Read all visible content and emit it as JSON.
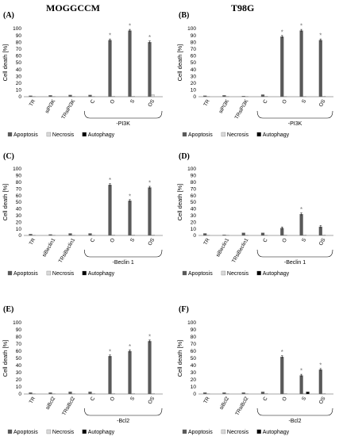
{
  "figure": {
    "column_titles": [
      "MOGGCCM",
      "T98G"
    ]
  },
  "chart_data": [
    {
      "type": "bar",
      "panel_label": "(A)",
      "ylabel": "Cell death [%]",
      "ylim": [
        0,
        100
      ],
      "yticks": [
        0,
        10,
        20,
        30,
        40,
        50,
        60,
        70,
        80,
        90,
        100
      ],
      "categories": [
        "TR",
        "siPI3K",
        "TRsiPI3K",
        "C",
        "O",
        "S",
        "OS"
      ],
      "bracket_label": "-PI3K",
      "significant": [
        false,
        false,
        false,
        false,
        true,
        true,
        true
      ],
      "significance_mark": "*",
      "legend": {
        "position": "bottom",
        "entries": [
          "Apoptosis",
          "Necrosis",
          "Autophagy"
        ]
      },
      "series": [
        {
          "name": "Apoptosis",
          "color": "#595959",
          "values": [
            1.5,
            2,
            2.5,
            2.5,
            83,
            97,
            80
          ]
        },
        {
          "name": "Necrosis",
          "color": "#d9d9d9",
          "values": [
            0.5,
            0.5,
            0.5,
            0.5,
            1,
            1,
            3
          ]
        },
        {
          "name": "Autophagy",
          "color": "#000000",
          "values": [
            0,
            0,
            0,
            0,
            0,
            0,
            0
          ]
        }
      ]
    },
    {
      "type": "bar",
      "panel_label": "(B)",
      "ylabel": "Cell death [%]",
      "ylim": [
        0,
        100
      ],
      "yticks": [
        0,
        10,
        20,
        30,
        40,
        50,
        60,
        70,
        80,
        90,
        100
      ],
      "categories": [
        "TR",
        "siPI3K",
        "TRsiPI3K",
        "C",
        "O",
        "S",
        "OS"
      ],
      "bracket_label": "-PI3K",
      "significant": [
        false,
        false,
        false,
        false,
        true,
        true,
        true
      ],
      "significance_mark": "*",
      "legend": {
        "position": "bottom",
        "entries": [
          "Apoptosis",
          "Necrosis",
          "Autophagy"
        ]
      },
      "series": [
        {
          "name": "Apoptosis",
          "color": "#595959",
          "values": [
            1.5,
            2,
            1,
            3,
            88,
            97,
            83
          ]
        },
        {
          "name": "Necrosis",
          "color": "#d9d9d9",
          "values": [
            0.5,
            0.5,
            0.5,
            1,
            0.5,
            0.5,
            1
          ]
        },
        {
          "name": "Autophagy",
          "color": "#000000",
          "values": [
            0,
            0,
            0,
            0,
            0,
            0,
            0
          ]
        }
      ]
    },
    {
      "type": "bar",
      "panel_label": "(C)",
      "ylabel": "Cell death [%]",
      "ylim": [
        0,
        100
      ],
      "yticks": [
        0,
        10,
        20,
        30,
        40,
        50,
        60,
        70,
        80,
        90,
        100
      ],
      "categories": [
        "TR",
        "siBeclin1",
        "TRsiBeclin1",
        "C",
        "O",
        "S",
        "OS"
      ],
      "bracket_label": "-Beclin 1",
      "significant": [
        false,
        false,
        false,
        false,
        true,
        true,
        true
      ],
      "significance_mark": "*",
      "legend": {
        "position": "bottom",
        "entries": [
          "Apoptosis",
          "Necrosis",
          "Autophagy"
        ]
      },
      "series": [
        {
          "name": "Apoptosis",
          "color": "#595959",
          "values": [
            2,
            1.5,
            3,
            3,
            76,
            52,
            72
          ]
        },
        {
          "name": "Necrosis",
          "color": "#d9d9d9",
          "values": [
            0.5,
            0.5,
            0.5,
            0.5,
            1,
            1,
            1
          ]
        },
        {
          "name": "Autophagy",
          "color": "#000000",
          "values": [
            0,
            0,
            0,
            0,
            0,
            0,
            0
          ]
        }
      ]
    },
    {
      "type": "bar",
      "panel_label": "(D)",
      "ylabel": "Cell death [%]",
      "ylim": [
        0,
        100
      ],
      "yticks": [
        0,
        10,
        20,
        30,
        40,
        50,
        60,
        70,
        80,
        90,
        100
      ],
      "categories": [
        "TR",
        "siBeclin1",
        "TRsiBeclin1",
        "C",
        "O",
        "S",
        "OS"
      ],
      "bracket_label": "-Beclin 1",
      "significant": [
        false,
        false,
        false,
        false,
        false,
        true,
        false
      ],
      "significance_mark": "*",
      "legend": {
        "position": "bottom",
        "entries": [
          "Apoptosis",
          "Necrosis",
          "Autophagy"
        ]
      },
      "series": [
        {
          "name": "Apoptosis",
          "color": "#595959",
          "values": [
            3,
            1,
            4,
            4,
            11,
            32,
            13
          ]
        },
        {
          "name": "Necrosis",
          "color": "#d9d9d9",
          "values": [
            0.5,
            0.5,
            0.5,
            0.5,
            1,
            1,
            1
          ]
        },
        {
          "name": "Autophagy",
          "color": "#000000",
          "values": [
            0,
            0,
            0,
            0,
            0,
            0,
            0
          ]
        }
      ]
    },
    {
      "type": "bar",
      "panel_label": "(E)",
      "ylabel": "Cell death [%]",
      "ylim": [
        0,
        100
      ],
      "yticks": [
        0,
        10,
        20,
        30,
        40,
        50,
        60,
        70,
        80,
        90,
        100
      ],
      "categories": [
        "TR",
        "siBcl2",
        "TRsiBcl2",
        "C",
        "O",
        "S",
        "OS"
      ],
      "bracket_label": "-Bcl2",
      "significant": [
        false,
        false,
        false,
        false,
        true,
        true,
        true
      ],
      "significance_mark": "*",
      "legend": {
        "position": "bottom",
        "entries": [
          "Apoptosis",
          "Necrosis",
          "Autophagy"
        ]
      },
      "series": [
        {
          "name": "Apoptosis",
          "color": "#595959",
          "values": [
            2,
            2,
            3,
            3,
            53,
            60,
            74
          ]
        },
        {
          "name": "Necrosis",
          "color": "#d9d9d9",
          "values": [
            0.5,
            0.5,
            0.5,
            1,
            1,
            1,
            1
          ]
        },
        {
          "name": "Autophagy",
          "color": "#000000",
          "values": [
            0,
            0,
            0,
            0,
            0,
            0,
            0
          ]
        }
      ]
    },
    {
      "type": "bar",
      "panel_label": "(F)",
      "ylabel": "Cell death [%]",
      "ylim": [
        0,
        100
      ],
      "yticks": [
        0,
        10,
        20,
        30,
        40,
        50,
        60,
        70,
        80,
        90,
        100
      ],
      "categories": [
        "TR",
        "siBcl2",
        "TRsiBcl2",
        "C",
        "O",
        "S",
        "OS"
      ],
      "bracket_label": "-Bcl2",
      "significant": [
        false,
        false,
        false,
        false,
        true,
        true,
        true
      ],
      "significance_mark": "*",
      "legend": {
        "position": "bottom",
        "entries": [
          "Apoptosis",
          "Necrosis",
          "Autophagy"
        ]
      },
      "series": [
        {
          "name": "Apoptosis",
          "color": "#595959",
          "values": [
            2,
            2,
            2,
            3,
            52,
            26,
            34
          ]
        },
        {
          "name": "Necrosis",
          "color": "#d9d9d9",
          "values": [
            0.5,
            0.5,
            0.5,
            1,
            1,
            1,
            1
          ]
        },
        {
          "name": "Autophagy",
          "color": "#000000",
          "values": [
            0,
            0,
            0,
            0,
            0,
            3,
            0
          ]
        }
      ]
    }
  ]
}
